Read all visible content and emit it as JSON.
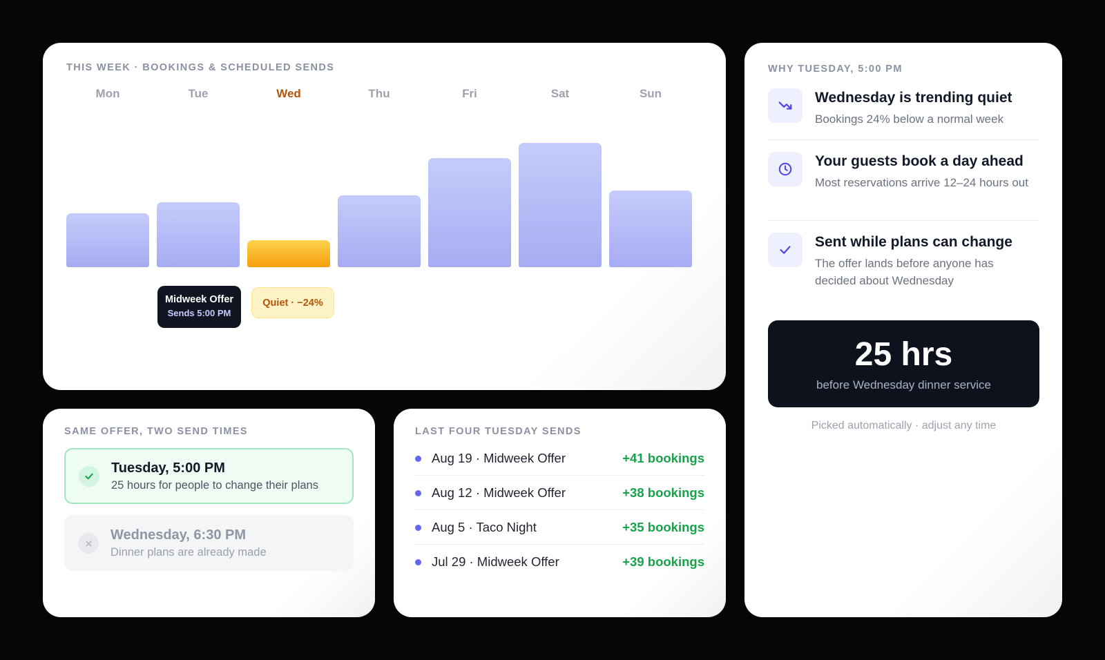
{
  "week": {
    "eyebrow": "THIS WEEK · BOOKINGS & SCHEDULED SENDS",
    "days": [
      "Mon",
      "Tue",
      "Wed",
      "Thu",
      "Fri",
      "Sat",
      "Sun"
    ],
    "highlight_day": "Wed",
    "send_chip": {
      "title": "Midweek Offer",
      "subtitle": "Sends 5:00 PM"
    },
    "quiet_chip": "Quiet · −24%"
  },
  "chart_data": {
    "type": "bar",
    "categories": [
      "Mon",
      "Tue",
      "Wed",
      "Thu",
      "Fri",
      "Sat",
      "Sun"
    ],
    "values": [
      46,
      55,
      23,
      61,
      93,
      106,
      65
    ],
    "title": "",
    "xlabel": "",
    "ylabel": "",
    "ylim": [
      0,
      110
    ],
    "grid": false,
    "colors": {
      "bar": "#a6acf2",
      "highlight": "#f59e0b"
    }
  },
  "why": {
    "eyebrow": "WHY TUESDAY, 5:00 PM",
    "reasons": [
      {
        "icon": "trending-down-icon",
        "title": "Wednesday is trending quiet",
        "subtitle": "Bookings 24% below a normal week"
      },
      {
        "icon": "clock-icon",
        "title": "Your guests book a day ahead",
        "subtitle": "Most reservations arrive 12–24 hours out"
      },
      {
        "icon": "check-icon",
        "title": "Sent while plans can change",
        "subtitle": "The offer lands before anyone has decided about Wednesday"
      }
    ],
    "hours_value": "25 hrs",
    "hours_caption": "before Wednesday dinner service",
    "note": "Picked automatically · adjust any time"
  },
  "offer": {
    "eyebrow": "SAME OFFER, TWO SEND TIMES",
    "options": [
      {
        "status": "chosen",
        "icon": "check-icon",
        "title": "Tuesday, 5:00 PM",
        "subtitle": "25 hours for people to change their plans"
      },
      {
        "status": "rejected",
        "icon": "x-icon",
        "title": "Wednesday, 6:30 PM",
        "subtitle": "Dinner plans are already made"
      }
    ]
  },
  "sends": {
    "eyebrow": "LAST FOUR TUESDAY SENDS",
    "rows": [
      {
        "name": "Aug 19 · Midweek Offer",
        "result": "+41 bookings"
      },
      {
        "name": "Aug 12 · Midweek Offer",
        "result": "+38 bookings"
      },
      {
        "name": "Aug 5 · Taco Night",
        "result": "+35 bookings"
      },
      {
        "name": "Jul 29 · Midweek Offer",
        "result": "+39 bookings"
      }
    ]
  },
  "colors": {
    "accent": "#6366f1",
    "highlight": "#f59e0b",
    "positive": "#16a34a"
  }
}
